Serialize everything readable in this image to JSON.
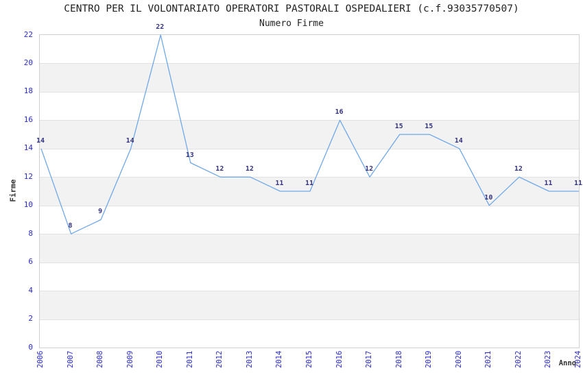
{
  "title": "CENTRO PER IL VOLONTARIATO OPERATORI PASTORALI OSPEDALIERI (c.f.93035770507)",
  "subtitle": "Numero Firme",
  "chart_data": {
    "type": "line",
    "x": [
      2006,
      2007,
      2008,
      2009,
      2010,
      2011,
      2012,
      2013,
      2014,
      2015,
      2016,
      2017,
      2018,
      2019,
      2020,
      2021,
      2022,
      2023,
      2024
    ],
    "values": [
      14,
      8,
      9,
      14,
      22,
      13,
      12,
      12,
      11,
      11,
      16,
      12,
      15,
      15,
      14,
      10,
      12,
      11,
      11
    ],
    "series_name": "Numero Firme",
    "xlabel": "Anno",
    "ylabel": "Firme",
    "ylim": [
      0,
      22
    ],
    "ytick_step": 2,
    "legend": "none",
    "grid": "alternating-horizontal-bands",
    "colors": {
      "line": "#6fa8e8",
      "band": "#f2f2f2",
      "gridline": "#e2e2e2",
      "plot_border": "#d0d0d0",
      "tick_label": "#2a2ac8",
      "data_label": "#333380",
      "title": "#222222",
      "axis_title": "#333333"
    }
  }
}
